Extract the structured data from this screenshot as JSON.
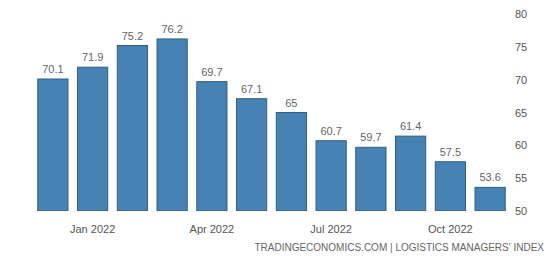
{
  "chart_data": {
    "type": "bar",
    "source": "TRADINGECONOMICS.COM | LOGISTICS MANAGERS' INDEX",
    "categories": [
      null,
      "Jan 2022",
      null,
      null,
      "Apr 2022",
      null,
      null,
      "Jul 2022",
      null,
      null,
      "Oct 2022",
      null
    ],
    "values": [
      70.1,
      71.9,
      75.2,
      76.2,
      69.7,
      67.1,
      65,
      60.7,
      59.7,
      61.4,
      57.5,
      53.6
    ],
    "color": "#4682b4",
    "ylim": [
      50,
      80
    ],
    "yticks": [
      50,
      55,
      60,
      65,
      70,
      75,
      80
    ],
    "grid": false,
    "data_labels": true
  }
}
